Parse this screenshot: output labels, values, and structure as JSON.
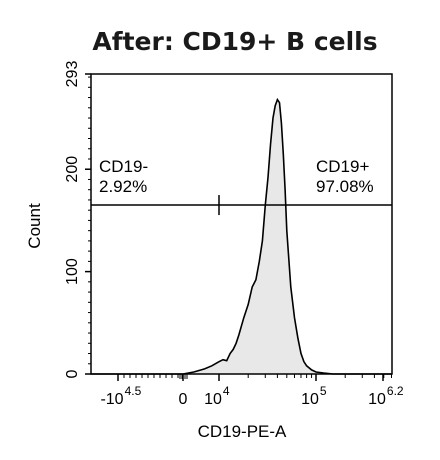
{
  "chart_data": {
    "type": "area",
    "title": "After: CD19+ B cells",
    "xlabel": "CD19-PE-A",
    "ylabel": "Count",
    "x_scale": "biexponential",
    "ylim": [
      0,
      293
    ],
    "y_ticks": [
      "0",
      "100",
      "200",
      "293"
    ],
    "x_ticks": [
      {
        "base": "-10",
        "exp": "4.5"
      },
      {
        "base": "0",
        "exp": ""
      },
      {
        "base": "10",
        "exp": "4"
      },
      {
        "base": "10",
        "exp": "5"
      },
      {
        "base": "10",
        "exp": "6.2"
      }
    ],
    "series": [
      {
        "x": [
          0,
          3000,
          6000,
          8000,
          10000,
          11000,
          12000,
          13000,
          14000,
          15000,
          16000,
          18000,
          20000,
          22000,
          24000,
          26000,
          28000,
          30000,
          32000,
          34000,
          36000,
          38000,
          40000,
          42000,
          44000,
          46000,
          48000,
          50000,
          55000,
          60000,
          65000,
          70000,
          75000,
          80000,
          90000,
          100000,
          120000,
          150000
        ],
        "values": [
          0,
          2,
          5,
          8,
          12,
          14,
          13,
          20,
          24,
          30,
          38,
          55,
          68,
          85,
          92,
          110,
          130,
          165,
          192,
          225,
          250,
          262,
          268,
          265,
          245,
          215,
          180,
          140,
          85,
          55,
          35,
          20,
          12,
          8,
          4,
          2,
          1,
          0
        ]
      }
    ],
    "gates": [
      {
        "name": "CD19-",
        "percent": "2.92%"
      },
      {
        "name": "CD19+",
        "percent": "97.08%"
      }
    ],
    "gate_count_level": 165,
    "colors": {
      "fill": "#e8e8e8",
      "line": "#000000"
    }
  }
}
